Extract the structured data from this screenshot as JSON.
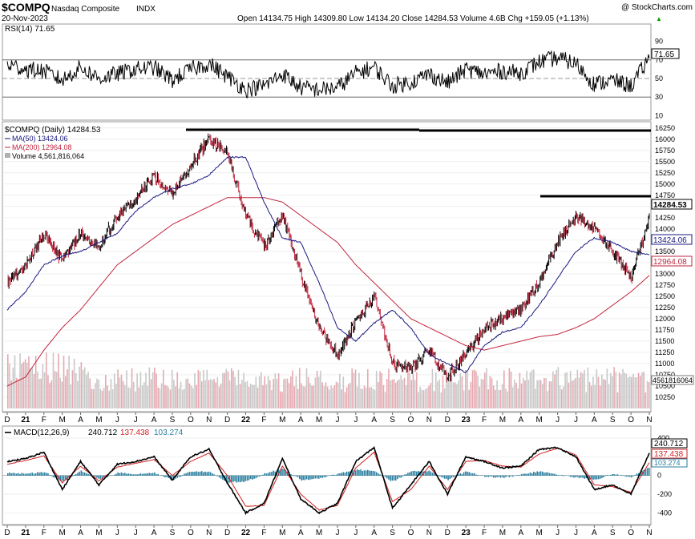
{
  "header": {
    "symbol": "$COMPQ",
    "name": "Nasdaq Composite",
    "exchange": "INDX",
    "date": "20-Nov-2023",
    "ohlc": "Open 14134.75  High 14309.80  Low 14134.20  Close 14284.53  Volume 4.6B  Chg +159.05 (+1.13%)",
    "ohlc_arrow": "▲",
    "watermark": "@ StockCharts.com"
  },
  "rsi": {
    "label": "RSI(14) 71.65",
    "last": 71.65,
    "last_label": "71.65",
    "ticks": [
      "90",
      "70",
      "50",
      "30",
      "10"
    ],
    "tick_values": [
      90,
      70,
      50,
      30,
      10
    ],
    "lines": [
      70,
      50,
      30
    ]
  },
  "price": {
    "legend_main": "$COMPQ (Daily) 14284.53",
    "legend_ma50": "MA(50) 13424.06",
    "legend_ma200": "MA(200) 12964.08",
    "legend_volume": "Volume 4,561,816,064",
    "last_close": 14284.53,
    "last_close_label": "14284.53",
    "ma50_last": 13424.06,
    "ma50_label": "13424.06",
    "ma200_last": 12964.08,
    "ma200_label": "12964.08",
    "volume_label": "4561816064",
    "ylim": [
      10000,
      16300
    ],
    "ticks": [
      "16250",
      "16000",
      "15750",
      "15500",
      "15250",
      "15000",
      "14750",
      "14500",
      "14250",
      "14000",
      "13750",
      "13500",
      "13250",
      "13000",
      "12750",
      "12500",
      "12250",
      "12000",
      "11750",
      "11500",
      "11250",
      "11000",
      "10750",
      "10500",
      "10250"
    ],
    "tick_values": [
      16250,
      16000,
      15750,
      15500,
      15250,
      15000,
      14750,
      14500,
      14250,
      14000,
      13750,
      13500,
      13250,
      13000,
      12750,
      12500,
      12250,
      12000,
      11750,
      11500,
      11250,
      11000,
      10750,
      10500,
      10250
    ],
    "resistance_lines": [
      16212,
      14446
    ]
  },
  "macd": {
    "label_prefix": "MACD(12,26,9)",
    "macd_value": "240.712",
    "signal_value": "137.438",
    "hist_value": "103.274",
    "ticks": [
      "400",
      "200",
      "0",
      "-200",
      "-400"
    ],
    "tick_values": [
      400,
      200,
      0,
      -200,
      -400
    ]
  },
  "xaxis": {
    "labels": [
      "D",
      "21",
      "F",
      "M",
      "A",
      "M",
      "J",
      "J",
      "A",
      "S",
      "O",
      "N",
      "D",
      "22",
      "F",
      "M",
      "A",
      "M",
      "J",
      "J",
      "A",
      "S",
      "O",
      "N",
      "D",
      "23",
      "F",
      "M",
      "A",
      "M",
      "J",
      "J",
      "A",
      "S",
      "O",
      "N"
    ]
  },
  "chart_data": {
    "type": "line",
    "title": "$COMPQ Nasdaq Composite INDX",
    "months": [
      "Dec-20",
      "Jan-21",
      "Feb-21",
      "Mar-21",
      "Apr-21",
      "May-21",
      "Jun-21",
      "Jul-21",
      "Aug-21",
      "Sep-21",
      "Oct-21",
      "Nov-21",
      "Dec-21",
      "Jan-22",
      "Feb-22",
      "Mar-22",
      "Apr-22",
      "May-22",
      "Jun-22",
      "Jul-22",
      "Aug-22",
      "Sep-22",
      "Oct-22",
      "Nov-22",
      "Dec-22",
      "Jan-23",
      "Feb-23",
      "Mar-23",
      "Apr-23",
      "May-23",
      "Jun-23",
      "Jul-23",
      "Aug-23",
      "Sep-23",
      "Oct-23",
      "Nov-23"
    ],
    "series": [
      {
        "name": "$COMPQ (Daily)",
        "values": [
          12800,
          13200,
          13900,
          13300,
          13900,
          13600,
          14300,
          14650,
          15200,
          14800,
          15400,
          16000,
          15700,
          14300,
          13600,
          14300,
          13000,
          11800,
          11200,
          11900,
          12500,
          11000,
          10900,
          11300,
          10700,
          11200,
          11800,
          12000,
          12200,
          12800,
          13700,
          14300,
          14000,
          13500,
          12900,
          14284.53
        ]
      },
      {
        "name": "MA(50)",
        "values": [
          12200,
          12600,
          13200,
          13400,
          13500,
          13700,
          13900,
          14400,
          14700,
          14900,
          15000,
          15200,
          15600,
          15600,
          14600,
          13800,
          13700,
          12800,
          11800,
          11500,
          11900,
          12200,
          11800,
          11200,
          11000,
          10800,
          11400,
          11700,
          11800,
          12300,
          12900,
          13500,
          13800,
          13700,
          13500,
          13424.06
        ]
      },
      {
        "name": "MA(200)",
        "values": [
          10500,
          10700,
          11300,
          11800,
          12200,
          12700,
          13200,
          13500,
          13800,
          14100,
          14300,
          14500,
          14700,
          14700,
          14700,
          14600,
          14300,
          14000,
          13700,
          13200,
          12800,
          12400,
          12000,
          11800,
          11600,
          11400,
          11300,
          11400,
          11500,
          11600,
          11650,
          11800,
          12000,
          12300,
          12600,
          12964.08
        ]
      },
      {
        "name": "RSI(14)",
        "values": [
          65,
          60,
          58,
          48,
          62,
          50,
          55,
          60,
          62,
          48,
          60,
          66,
          52,
          38,
          42,
          55,
          40,
          38,
          40,
          56,
          62,
          42,
          46,
          55,
          45,
          60,
          55,
          58,
          56,
          68,
          72,
          66,
          44,
          48,
          42,
          71.65
        ]
      },
      {
        "name": "MACD(12,26,9)",
        "values": [
          150,
          180,
          250,
          -150,
          150,
          -100,
          120,
          150,
          200,
          -50,
          200,
          280,
          -80,
          -400,
          -300,
          180,
          -250,
          -400,
          -300,
          150,
          300,
          -350,
          -100,
          150,
          -200,
          200,
          150,
          80,
          100,
          280,
          300,
          200,
          -150,
          -100,
          -200,
          240.712
        ]
      },
      {
        "name": "Signal",
        "values": [
          120,
          160,
          210,
          -80,
          100,
          -60,
          90,
          130,
          170,
          0,
          150,
          240,
          0,
          -330,
          -320,
          100,
          -200,
          -370,
          -320,
          80,
          250,
          -280,
          -150,
          100,
          -150,
          150,
          160,
          100,
          90,
          230,
          290,
          220,
          -100,
          -120,
          -180,
          137.438
        ]
      }
    ]
  }
}
